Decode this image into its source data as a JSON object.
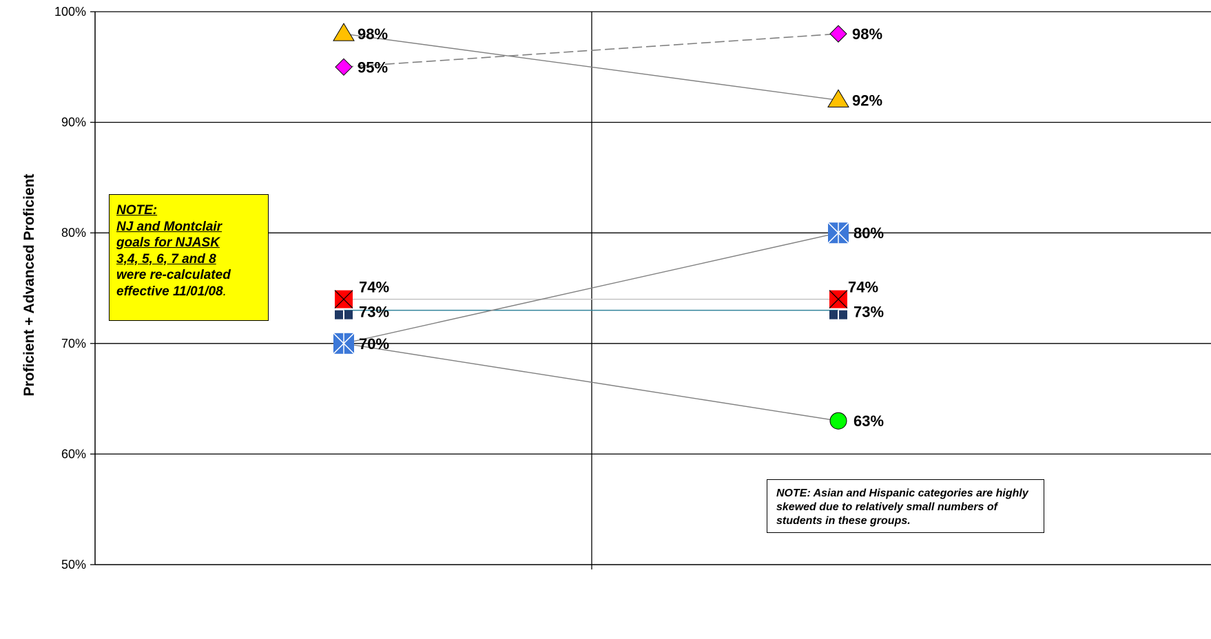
{
  "chart_data": {
    "type": "line",
    "ylabel": "Proficient + Advanced Proficient",
    "xlabel": "",
    "ylim": [
      50,
      100
    ],
    "yticks": [
      "50%",
      "60%",
      "70%",
      "80%",
      "90%",
      "100%"
    ],
    "grid": true,
    "x_positions": [
      "left",
      "right"
    ],
    "series": [
      {
        "marker": "triangle",
        "color": "#ffc000",
        "line_color": "#808080",
        "line_style": "solid",
        "values": [
          98,
          92
        ],
        "labels": [
          "98%",
          "92%"
        ]
      },
      {
        "marker": "diamond",
        "color": "#ff00ff",
        "line_color": "#808080",
        "line_style": "dashed",
        "values": [
          95,
          98
        ],
        "labels": [
          "95%",
          "98%"
        ]
      },
      {
        "marker": "square-x",
        "color": "#ff0000",
        "line_color": "#c0c0c0",
        "line_style": "solid",
        "values": [
          74,
          74
        ],
        "labels": [
          "74%",
          "74%"
        ]
      },
      {
        "marker": "square-plus",
        "color": "#1f3864",
        "line_color": "#31849b",
        "line_style": "solid",
        "values": [
          73,
          73
        ],
        "labels": [
          "73%",
          "73%"
        ]
      },
      {
        "marker": "asterisk-square",
        "color": "#3c78d8",
        "line_color": "#808080",
        "line_style": "solid",
        "values": [
          70,
          80
        ],
        "labels": [
          "70%",
          "80%"
        ]
      },
      {
        "marker": "circle",
        "color": "#00ff00",
        "line_color": "#808080",
        "line_style": "solid",
        "values": [
          70,
          63
        ],
        "labels": [
          null,
          "63%"
        ],
        "shared_start_marker": true
      }
    ]
  },
  "note1": {
    "heading": "NOTE:",
    "line1": "NJ and Montclair",
    "line2": "goals for NJASK",
    "line3": "3,4, 5, 6, 7 and 8",
    "line4": "were re-calculated",
    "line5": "effective 11/01/08",
    "tail": "."
  },
  "note2": {
    "text": "NOTE: Asian and Hispanic categories are highly skewed due to relatively small numbers of students in these groups."
  }
}
